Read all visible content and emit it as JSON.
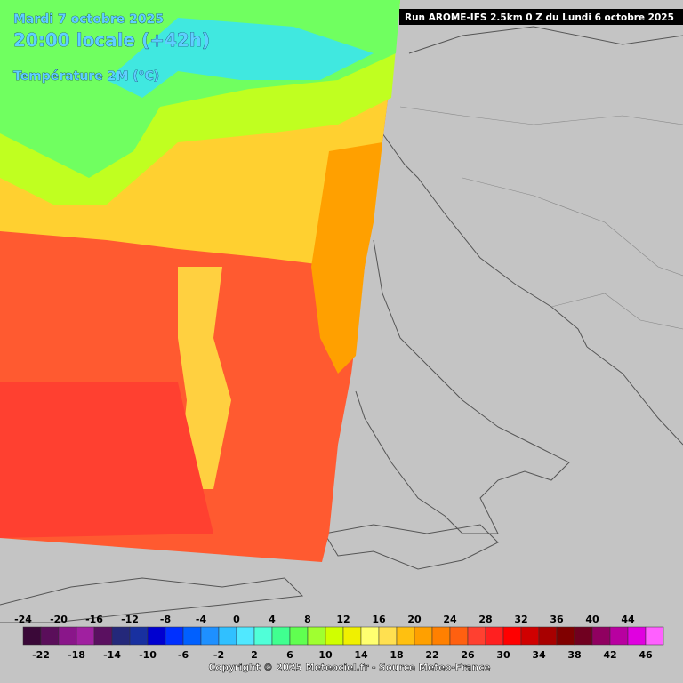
{
  "header": {
    "date": "Mardi 7 octobre 2025",
    "time": "20:00 locale (+42h)",
    "variable": "Température 2M (°C)",
    "run": "Run AROME-IFS 2.5km 0 Z du Lundi 6 octobre 2025"
  },
  "legend": {
    "values": [
      -24,
      -22,
      -20,
      -18,
      -16,
      -14,
      -12,
      -10,
      -8,
      -6,
      -4,
      -2,
      0,
      2,
      4,
      6,
      8,
      10,
      12,
      14,
      16,
      18,
      20,
      22,
      24,
      26,
      28,
      30,
      32,
      34,
      36,
      38,
      40,
      42,
      44,
      46
    ],
    "colors": [
      "#3a0838",
      "#5a0e5a",
      "#8a168a",
      "#a020a0",
      "#5a1060",
      "#24287a",
      "#1830a0",
      "#0000d0",
      "#0030ff",
      "#0060ff",
      "#1e90ff",
      "#30c0ff",
      "#50e8ff",
      "#50ffd8",
      "#40ff90",
      "#60ff50",
      "#a0ff30",
      "#d0ff00",
      "#f0f000",
      "#ffff70",
      "#ffe050",
      "#ffc010",
      "#ffa000",
      "#ff8000",
      "#ff6010",
      "#ff4030",
      "#ff2020",
      "#ff0000",
      "#d00000",
      "#a80000",
      "#800000",
      "#700020",
      "#900060",
      "#b800a0",
      "#e000e0",
      "#ff60ff"
    ]
  },
  "footer": {
    "copyright": "Copyright © 2025 Meteociel.fr - Source Meteo-France"
  }
}
